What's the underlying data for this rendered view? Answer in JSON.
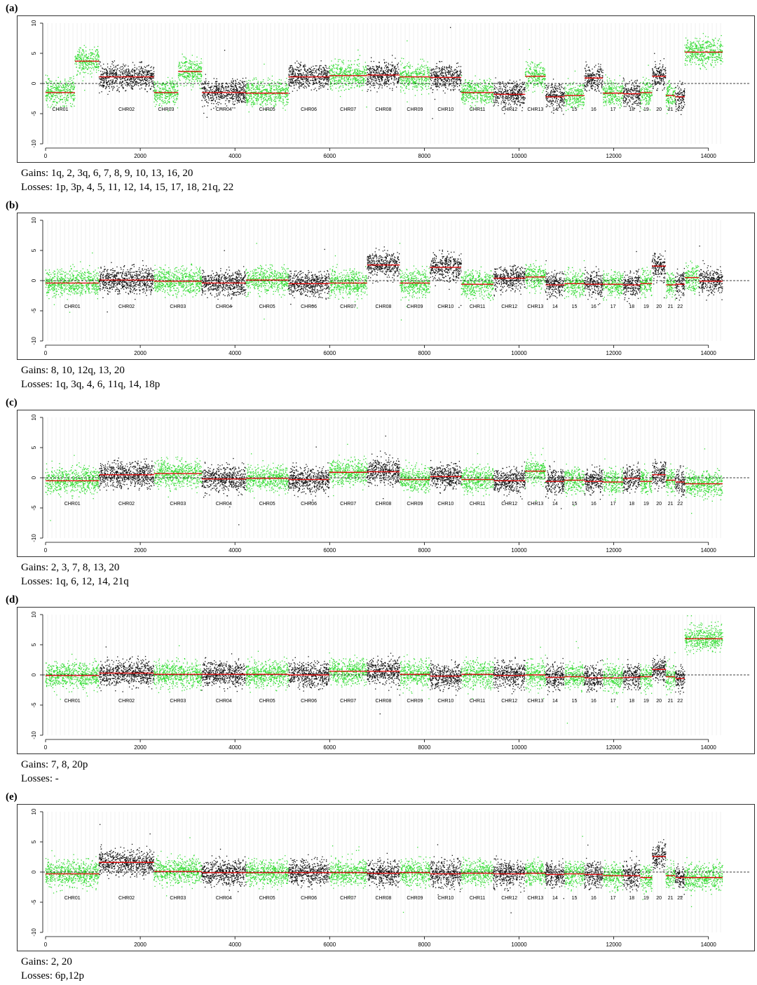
{
  "colors": {
    "green": "#33dd33",
    "black": "#111111",
    "segment": "#e01010",
    "baseline": "#000000",
    "grid": "#d8d8d8"
  },
  "chart_data": [
    {
      "type": "scatter",
      "label": "(a)",
      "xlim": [
        0,
        14300
      ],
      "ylim": [
        -10,
        10
      ],
      "xticks": [
        0,
        2000,
        4000,
        6000,
        8000,
        10000,
        12000,
        14000
      ],
      "yticks": [
        -10,
        -5,
        0,
        5,
        10
      ],
      "segments": [
        {
          "name": "CHR01",
          "start": 0,
          "end": 620,
          "mean": -1.5,
          "color": "green"
        },
        {
          "name": "",
          "start": 620,
          "end": 1130,
          "mean": 3.7,
          "color": "green"
        },
        {
          "name": "CHR02",
          "start": 1130,
          "end": 2290,
          "mean": 1.1,
          "color": "black"
        },
        {
          "name": "CHR03",
          "start": 2290,
          "end": 2800,
          "mean": -1.5,
          "color": "green"
        },
        {
          "name": "",
          "start": 2800,
          "end": 3300,
          "mean": 2.0,
          "color": "green"
        },
        {
          "name": "CHR04",
          "start": 3300,
          "end": 4230,
          "mean": -1.5,
          "color": "black"
        },
        {
          "name": "CHR05",
          "start": 4230,
          "end": 5130,
          "mean": -1.6,
          "color": "green"
        },
        {
          "name": "CHR06",
          "start": 5130,
          "end": 5990,
          "mean": 1.1,
          "color": "black"
        },
        {
          "name": "CHR07",
          "start": 5990,
          "end": 6790,
          "mean": 1.3,
          "color": "green"
        },
        {
          "name": "CHR08",
          "start": 6790,
          "end": 7480,
          "mean": 1.4,
          "color": "black"
        },
        {
          "name": "CHR09",
          "start": 7480,
          "end": 8120,
          "mean": 1.1,
          "color": "green"
        },
        {
          "name": "CHR10",
          "start": 8120,
          "end": 8780,
          "mean": 1.0,
          "color": "black"
        },
        {
          "name": "CHR11",
          "start": 8780,
          "end": 9460,
          "mean": -1.5,
          "color": "green"
        },
        {
          "name": "CHR12",
          "start": 9460,
          "end": 10130,
          "mean": -1.8,
          "color": "black"
        },
        {
          "name": "CHR13",
          "start": 10130,
          "end": 10560,
          "mean": 1.2,
          "color": "green"
        },
        {
          "name": "14",
          "start": 10560,
          "end": 10960,
          "mean": -2.2,
          "color": "black"
        },
        {
          "name": "15",
          "start": 10960,
          "end": 11380,
          "mean": -2.0,
          "color": "green"
        },
        {
          "name": "16",
          "start": 11380,
          "end": 11770,
          "mean": 0.9,
          "color": "black"
        },
        {
          "name": "17",
          "start": 11770,
          "end": 12200,
          "mean": -1.6,
          "color": "green"
        },
        {
          "name": "18",
          "start": 12200,
          "end": 12560,
          "mean": -1.7,
          "color": "black"
        },
        {
          "name": "19",
          "start": 12560,
          "end": 12810,
          "mean": -1.5,
          "color": "green"
        },
        {
          "name": "20",
          "start": 12810,
          "end": 13100,
          "mean": 1.2,
          "color": "black"
        },
        {
          "name": "21",
          "start": 13100,
          "end": 13300,
          "mean": -2.0,
          "color": "green"
        },
        {
          "name": "22",
          "start": 13300,
          "end": 13500,
          "mean": -2.2,
          "color": "black"
        },
        {
          "name": "",
          "start": 13500,
          "end": 14300,
          "mean": 5.2,
          "color": "green"
        }
      ],
      "gains_label": "Gains: 1q, 2, 3q, 6, 7, 8, 9, 10, 13, 16, 20",
      "losses_label": "Losses: 1p, 3p, 4, 5, 11, 12, 14, 15, 17, 18, 21q, 22"
    },
    {
      "type": "scatter",
      "label": "(b)",
      "xlim": [
        0,
        14300
      ],
      "ylim": [
        -10,
        10
      ],
      "xticks": [
        0,
        2000,
        4000,
        6000,
        8000,
        10000,
        12000,
        14000
      ],
      "yticks": [
        -10,
        -5,
        0,
        5,
        10
      ],
      "segments": [
        {
          "name": "CHR01",
          "start": 0,
          "end": 1130,
          "mean": -0.4,
          "color": "green"
        },
        {
          "name": "CHR02",
          "start": 1130,
          "end": 2290,
          "mean": 0.1,
          "color": "black"
        },
        {
          "name": "CHR03",
          "start": 2290,
          "end": 3300,
          "mean": -0.1,
          "color": "green"
        },
        {
          "name": "CHR04",
          "start": 3300,
          "end": 4230,
          "mean": -0.4,
          "color": "black"
        },
        {
          "name": "CHR05",
          "start": 4230,
          "end": 5130,
          "mean": 0.1,
          "color": "green"
        },
        {
          "name": "CHR06",
          "start": 5130,
          "end": 5990,
          "mean": -0.5,
          "color": "black"
        },
        {
          "name": "CHR07",
          "start": 5990,
          "end": 6790,
          "mean": -0.4,
          "color": "green"
        },
        {
          "name": "CHR08",
          "start": 6790,
          "end": 7480,
          "mean": 2.6,
          "color": "black"
        },
        {
          "name": "CHR09",
          "start": 7480,
          "end": 8120,
          "mean": -0.4,
          "color": "green"
        },
        {
          "name": "CHR10",
          "start": 8120,
          "end": 8780,
          "mean": 2.2,
          "color": "black"
        },
        {
          "name": "CHR11",
          "start": 8780,
          "end": 9460,
          "mean": -0.6,
          "color": "green"
        },
        {
          "name": "CHR12",
          "start": 9460,
          "end": 10130,
          "mean": 0.4,
          "color": "black"
        },
        {
          "name": "CHR13",
          "start": 10130,
          "end": 10560,
          "mean": 0.6,
          "color": "green"
        },
        {
          "name": "14",
          "start": 10560,
          "end": 10960,
          "mean": -0.7,
          "color": "black"
        },
        {
          "name": "15",
          "start": 10960,
          "end": 11380,
          "mean": -0.5,
          "color": "green"
        },
        {
          "name": "16",
          "start": 11380,
          "end": 11770,
          "mean": -0.6,
          "color": "black"
        },
        {
          "name": "17",
          "start": 11770,
          "end": 12200,
          "mean": -0.6,
          "color": "green"
        },
        {
          "name": "18",
          "start": 12200,
          "end": 12560,
          "mean": -0.7,
          "color": "black"
        },
        {
          "name": "19",
          "start": 12560,
          "end": 12810,
          "mean": -0.5,
          "color": "green"
        },
        {
          "name": "20",
          "start": 12810,
          "end": 13100,
          "mean": 2.4,
          "color": "black"
        },
        {
          "name": "21",
          "start": 13100,
          "end": 13300,
          "mean": -0.7,
          "color": "green"
        },
        {
          "name": "22",
          "start": 13300,
          "end": 13500,
          "mean": -0.6,
          "color": "black"
        },
        {
          "name": "",
          "start": 13500,
          "end": 13800,
          "mean": 0.5,
          "color": "green"
        },
        {
          "name": "",
          "start": 13800,
          "end": 14300,
          "mean": -0.1,
          "color": "black"
        }
      ],
      "gains_label": "Gains: 8, 10, 12q, 13, 20",
      "losses_label": "Losses: 1q, 3q, 4, 6, 11q, 14, 18p"
    },
    {
      "type": "scatter",
      "label": "(c)",
      "xlim": [
        0,
        14300
      ],
      "ylim": [
        -10,
        10
      ],
      "xticks": [
        0,
        2000,
        4000,
        6000,
        8000,
        10000,
        12000,
        14000
      ],
      "yticks": [
        -10,
        -5,
        0,
        5,
        10
      ],
      "segments": [
        {
          "name": "CHR01",
          "start": 0,
          "end": 1130,
          "mean": -0.5,
          "color": "green"
        },
        {
          "name": "CHR02",
          "start": 1130,
          "end": 2290,
          "mean": 0.5,
          "color": "black"
        },
        {
          "name": "CHR03",
          "start": 2290,
          "end": 3300,
          "mean": 0.7,
          "color": "green"
        },
        {
          "name": "CHR04",
          "start": 3300,
          "end": 4230,
          "mean": -0.2,
          "color": "black"
        },
        {
          "name": "CHR05",
          "start": 4230,
          "end": 5130,
          "mean": -0.1,
          "color": "green"
        },
        {
          "name": "CHR06",
          "start": 5130,
          "end": 5990,
          "mean": -0.3,
          "color": "black"
        },
        {
          "name": "CHR07",
          "start": 5990,
          "end": 6790,
          "mean": 0.9,
          "color": "green"
        },
        {
          "name": "CHR08",
          "start": 6790,
          "end": 7480,
          "mean": 1.0,
          "color": "black"
        },
        {
          "name": "CHR09",
          "start": 7480,
          "end": 8120,
          "mean": -0.3,
          "color": "green"
        },
        {
          "name": "CHR10",
          "start": 8120,
          "end": 8780,
          "mean": 0.2,
          "color": "black"
        },
        {
          "name": "CHR11",
          "start": 8780,
          "end": 9460,
          "mean": -0.3,
          "color": "green"
        },
        {
          "name": "CHR12",
          "start": 9460,
          "end": 10130,
          "mean": -0.5,
          "color": "black"
        },
        {
          "name": "CHR13",
          "start": 10130,
          "end": 10560,
          "mean": 1.1,
          "color": "green"
        },
        {
          "name": "14",
          "start": 10560,
          "end": 10960,
          "mean": -0.6,
          "color": "black"
        },
        {
          "name": "15",
          "start": 10960,
          "end": 11380,
          "mean": -0.4,
          "color": "green"
        },
        {
          "name": "16",
          "start": 11380,
          "end": 11770,
          "mean": -0.6,
          "color": "black"
        },
        {
          "name": "17",
          "start": 11770,
          "end": 12200,
          "mean": -0.7,
          "color": "green"
        },
        {
          "name": "18",
          "start": 12200,
          "end": 12560,
          "mean": -0.1,
          "color": "black"
        },
        {
          "name": "19",
          "start": 12560,
          "end": 12810,
          "mean": -0.6,
          "color": "green"
        },
        {
          "name": "20",
          "start": 12810,
          "end": 13100,
          "mean": 0.5,
          "color": "black"
        },
        {
          "name": "21",
          "start": 13100,
          "end": 13300,
          "mean": -0.4,
          "color": "green"
        },
        {
          "name": "22",
          "start": 13300,
          "end": 13500,
          "mean": -0.7,
          "color": "black"
        },
        {
          "name": "",
          "start": 13500,
          "end": 14300,
          "mean": -1.0,
          "color": "green"
        }
      ],
      "gains_label": "Gains: 2, 3, 7, 8, 13, 20",
      "losses_label": "Losses: 1q, 6, 12, 14, 21q"
    },
    {
      "type": "scatter",
      "label": "(d)",
      "xlim": [
        0,
        14300
      ],
      "ylim": [
        -10,
        10
      ],
      "xticks": [
        0,
        2000,
        4000,
        6000,
        8000,
        10000,
        12000,
        14000
      ],
      "yticks": [
        -10,
        -5,
        0,
        5,
        10
      ],
      "segments": [
        {
          "name": "CHR01",
          "start": 0,
          "end": 1130,
          "mean": -0.1,
          "color": "green"
        },
        {
          "name": "CHR02",
          "start": 1130,
          "end": 2290,
          "mean": 0.3,
          "color": "black"
        },
        {
          "name": "CHR03",
          "start": 2290,
          "end": 3300,
          "mean": 0.1,
          "color": "green"
        },
        {
          "name": "CHR04",
          "start": 3300,
          "end": 4230,
          "mean": 0.1,
          "color": "black"
        },
        {
          "name": "CHR05",
          "start": 4230,
          "end": 5130,
          "mean": 0.1,
          "color": "green"
        },
        {
          "name": "CHR06",
          "start": 5130,
          "end": 5990,
          "mean": 0.0,
          "color": "black"
        },
        {
          "name": "CHR07",
          "start": 5990,
          "end": 6790,
          "mean": 0.6,
          "color": "green"
        },
        {
          "name": "CHR08",
          "start": 6790,
          "end": 7480,
          "mean": 0.6,
          "color": "black"
        },
        {
          "name": "CHR09",
          "start": 7480,
          "end": 8120,
          "mean": 0.1,
          "color": "green"
        },
        {
          "name": "CHR10",
          "start": 8120,
          "end": 8780,
          "mean": -0.2,
          "color": "black"
        },
        {
          "name": "CHR11",
          "start": 8780,
          "end": 9460,
          "mean": 0.1,
          "color": "green"
        },
        {
          "name": "CHR12",
          "start": 9460,
          "end": 10130,
          "mean": -0.1,
          "color": "black"
        },
        {
          "name": "CHR13",
          "start": 10130,
          "end": 10560,
          "mean": 0.0,
          "color": "green"
        },
        {
          "name": "14",
          "start": 10560,
          "end": 10960,
          "mean": -0.4,
          "color": "black"
        },
        {
          "name": "15",
          "start": 10960,
          "end": 11380,
          "mean": -0.3,
          "color": "green"
        },
        {
          "name": "16",
          "start": 11380,
          "end": 11770,
          "mean": -0.5,
          "color": "black"
        },
        {
          "name": "17",
          "start": 11770,
          "end": 12200,
          "mean": -0.5,
          "color": "green"
        },
        {
          "name": "18",
          "start": 12200,
          "end": 12560,
          "mean": -0.4,
          "color": "black"
        },
        {
          "name": "19",
          "start": 12560,
          "end": 12810,
          "mean": -0.3,
          "color": "green"
        },
        {
          "name": "20",
          "start": 12810,
          "end": 13100,
          "mean": 0.9,
          "color": "black"
        },
        {
          "name": "21",
          "start": 13100,
          "end": 13300,
          "mean": -0.3,
          "color": "green"
        },
        {
          "name": "22",
          "start": 13300,
          "end": 13500,
          "mean": -0.6,
          "color": "black"
        },
        {
          "name": "",
          "start": 13500,
          "end": 14300,
          "mean": 6.0,
          "color": "green"
        }
      ],
      "gains_label": "Gains: 7, 8, 20p",
      "losses_label": "Losses: -"
    },
    {
      "type": "scatter",
      "label": "(e)",
      "xlim": [
        0,
        14300
      ],
      "ylim": [
        -10,
        10
      ],
      "xticks": [
        0,
        2000,
        4000,
        6000,
        8000,
        10000,
        12000,
        14000
      ],
      "yticks": [
        -10,
        -5,
        0,
        5,
        10
      ],
      "segments": [
        {
          "name": "CHR01",
          "start": 0,
          "end": 1130,
          "mean": -0.3,
          "color": "green"
        },
        {
          "name": "CHR02",
          "start": 1130,
          "end": 2290,
          "mean": 1.6,
          "color": "black"
        },
        {
          "name": "CHR03",
          "start": 2290,
          "end": 3300,
          "mean": 0.1,
          "color": "green"
        },
        {
          "name": "CHR04",
          "start": 3300,
          "end": 4230,
          "mean": -0.1,
          "color": "black"
        },
        {
          "name": "CHR05",
          "start": 4230,
          "end": 5130,
          "mean": -0.1,
          "color": "green"
        },
        {
          "name": "CHR06",
          "start": 5130,
          "end": 5990,
          "mean": -0.1,
          "color": "black"
        },
        {
          "name": "CHR07",
          "start": 5990,
          "end": 6790,
          "mean": -0.1,
          "color": "green"
        },
        {
          "name": "CHR08",
          "start": 6790,
          "end": 7480,
          "mean": -0.2,
          "color": "black"
        },
        {
          "name": "CHR09",
          "start": 7480,
          "end": 8120,
          "mean": -0.1,
          "color": "green"
        },
        {
          "name": "CHR10",
          "start": 8120,
          "end": 8780,
          "mean": -0.3,
          "color": "black"
        },
        {
          "name": "CHR11",
          "start": 8780,
          "end": 9460,
          "mean": -0.2,
          "color": "green"
        },
        {
          "name": "CHR12",
          "start": 9460,
          "end": 10130,
          "mean": -0.3,
          "color": "black"
        },
        {
          "name": "CHR13",
          "start": 10130,
          "end": 10560,
          "mean": -0.2,
          "color": "green"
        },
        {
          "name": "14",
          "start": 10560,
          "end": 10960,
          "mean": -0.4,
          "color": "black"
        },
        {
          "name": "15",
          "start": 10960,
          "end": 11380,
          "mean": -0.3,
          "color": "green"
        },
        {
          "name": "16",
          "start": 11380,
          "end": 11770,
          "mean": -0.4,
          "color": "black"
        },
        {
          "name": "17",
          "start": 11770,
          "end": 12200,
          "mean": -0.6,
          "color": "green"
        },
        {
          "name": "18",
          "start": 12200,
          "end": 12560,
          "mean": -0.6,
          "color": "black"
        },
        {
          "name": "19",
          "start": 12560,
          "end": 12810,
          "mean": -0.9,
          "color": "green"
        },
        {
          "name": "20",
          "start": 12810,
          "end": 13100,
          "mean": 2.6,
          "color": "black"
        },
        {
          "name": "21",
          "start": 13100,
          "end": 13300,
          "mean": -0.6,
          "color": "green"
        },
        {
          "name": "22",
          "start": 13300,
          "end": 13500,
          "mean": -0.9,
          "color": "black"
        },
        {
          "name": "",
          "start": 13500,
          "end": 14300,
          "mean": -0.9,
          "color": "green"
        }
      ],
      "gains_label": "Gains: 2, 20",
      "losses_label": "Losses: 6p,12p"
    }
  ]
}
